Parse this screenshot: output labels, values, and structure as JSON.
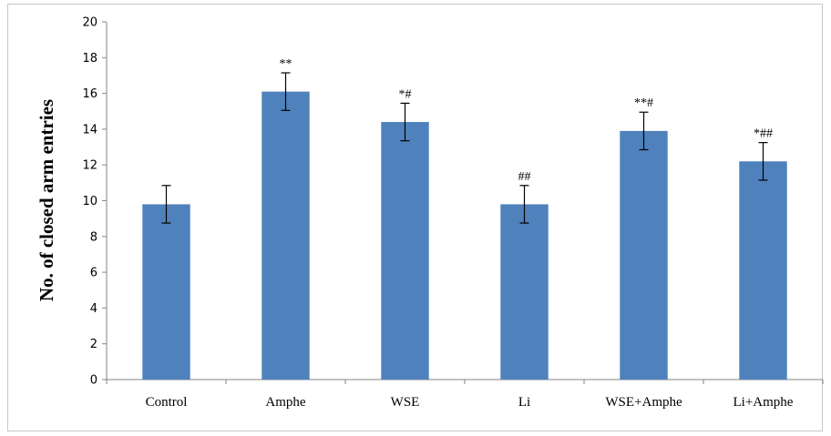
{
  "chart_data": {
    "type": "bar",
    "title": "",
    "xlabel": "",
    "ylabel": "No. of closed arm entries",
    "ylim": [
      0,
      20
    ],
    "yticks": [
      0,
      2,
      4,
      6,
      8,
      10,
      12,
      14,
      16,
      18,
      20
    ],
    "categories": [
      "Control",
      "Amphe",
      "WSE",
      "Li",
      "WSE+Amphe",
      "Li+Amphe"
    ],
    "values": [
      9.8,
      16.1,
      14.4,
      9.8,
      13.9,
      12.2
    ],
    "error": [
      1.05,
      1.05,
      1.05,
      1.05,
      1.05,
      1.05
    ],
    "annotations": [
      "",
      "**",
      "*#",
      "##",
      "**#",
      "*##"
    ],
    "bar_color": "#4f81bd",
    "grid": false,
    "legend": "none"
  }
}
